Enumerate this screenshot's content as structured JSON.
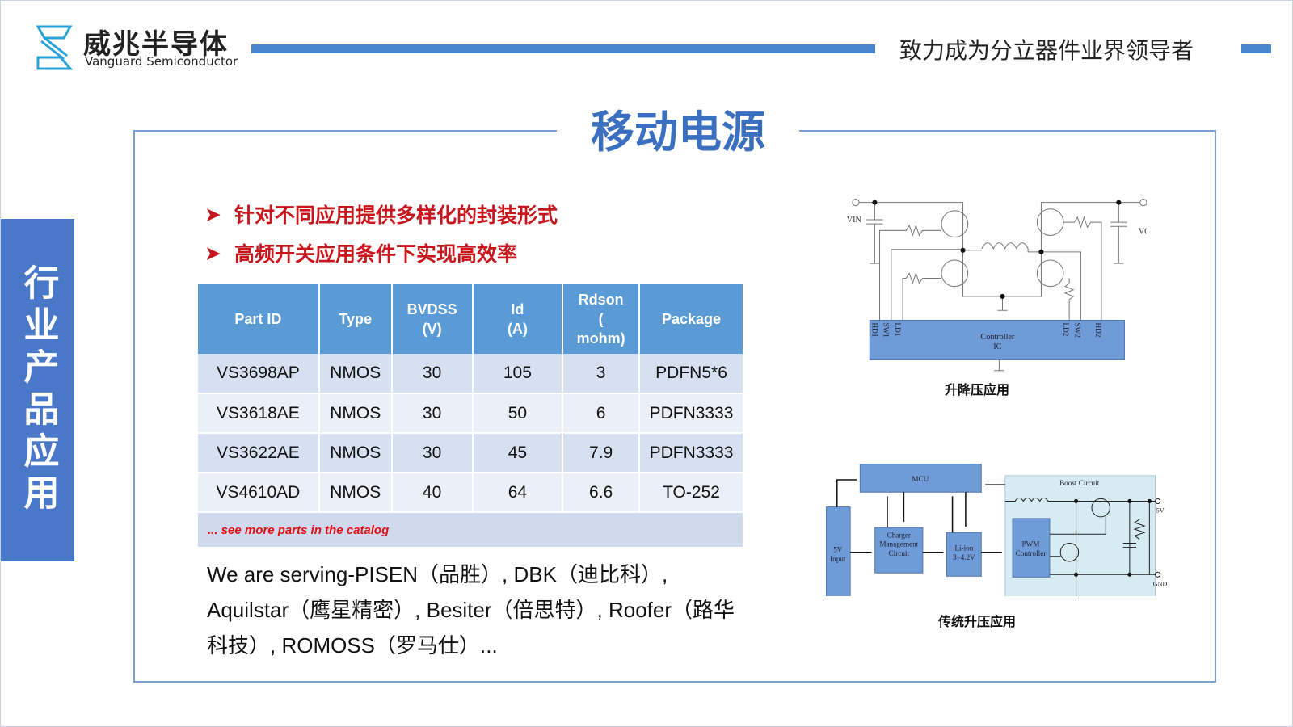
{
  "header": {
    "logo_cn": "威兆半导体",
    "logo_en": "Vanguard Semiconductor",
    "tagline": "致力成为分立器件业界领导者",
    "accent": "#4a86cc"
  },
  "sidebar": {
    "label": "行业产品应用",
    "color": "#4a78c8"
  },
  "main": {
    "title": "移动电源",
    "bullets": [
      "针对不同应用提供多样化的封装形式",
      "高频开关应用条件下实现高效率"
    ],
    "table": {
      "headers": [
        "Part ID",
        "Type",
        "BVDSS\n(V)",
        "Id\n(A)",
        "Rdson\n(\nmohm)",
        "Package"
      ],
      "rows": [
        [
          "VS3698AP",
          "NMOS",
          "30",
          "105",
          "3",
          "PDFN5*6"
        ],
        [
          "VS3618AE",
          "NMOS",
          "30",
          "50",
          "6",
          "PDFN3333"
        ],
        [
          "VS3622AE",
          "NMOS",
          "30",
          "45",
          "7.9",
          "PDFN3333"
        ],
        [
          "VS4610AD",
          "NMOS",
          "40",
          "64",
          "6.6",
          "TO-252"
        ]
      ],
      "footer": "... see more parts in the catalog"
    },
    "paragraph": "We are serving-PISEN（品胜）, DBK（迪比科）, Aquilstar（鹰星精密）, Besiter（倍思特）, Roofer（路华科技）, ROMOSS（罗马仕）..."
  },
  "diagram1": {
    "caption": "升降压应用",
    "vin": "VIN",
    "vout": "VOUT",
    "ic": "Controller",
    "ic2": "IC",
    "pins_left": [
      "HD1",
      "SW1",
      "LD1"
    ],
    "pins_right": [
      "LD2",
      "SW2",
      "HD2"
    ]
  },
  "diagram2": {
    "caption": "传统升压应用",
    "mcu": "MCU",
    "input": [
      "5V",
      "Input"
    ],
    "charger": [
      "Charger",
      "Management",
      "Circuit"
    ],
    "liion": [
      "Li-ion",
      "3~4.2V"
    ],
    "boost": "Boost Circuit",
    "pwm": [
      "PWM",
      "Controller"
    ],
    "out": "5V",
    "gnd": "GND"
  }
}
